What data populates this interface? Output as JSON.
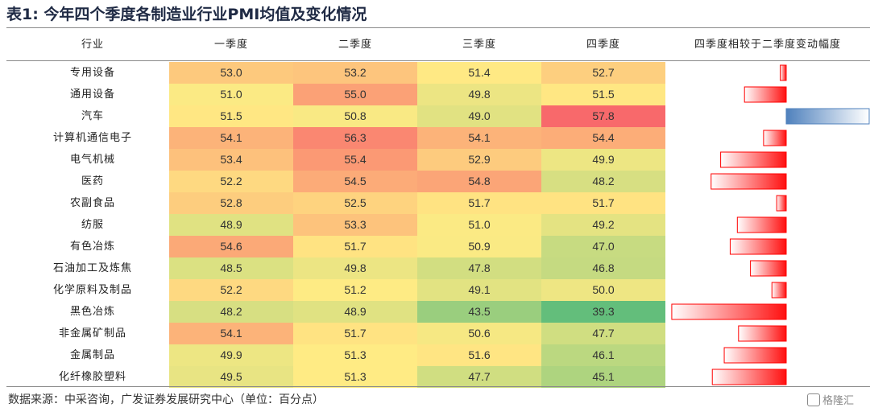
{
  "title": "表1:  今年四个季度各制造业行业PMI均值及变化情况",
  "headers": {
    "industry": "行业",
    "q1": "一季度",
    "q2": "二季度",
    "q3": "三季度",
    "q4": "四季度",
    "change": "四季度相较于二季度变动幅度"
  },
  "rows": [
    {
      "industry": "专用设备",
      "q1": "53.0",
      "q2": "53.2",
      "q3": "51.4",
      "q4": "52.7"
    },
    {
      "industry": "通用设备",
      "q1": "51.0",
      "q2": "55.0",
      "q3": "49.8",
      "q4": "51.5"
    },
    {
      "industry": "汽车",
      "q1": "51.5",
      "q2": "50.8",
      "q3": "49.0",
      "q4": "57.8"
    },
    {
      "industry": "计算机通信电子",
      "q1": "54.1",
      "q2": "56.3",
      "q3": "54.1",
      "q4": "54.4"
    },
    {
      "industry": "电气机械",
      "q1": "53.4",
      "q2": "55.4",
      "q3": "52.9",
      "q4": "49.9"
    },
    {
      "industry": "医药",
      "q1": "52.2",
      "q2": "54.5",
      "q3": "54.8",
      "q4": "48.2"
    },
    {
      "industry": "农副食品",
      "q1": "52.8",
      "q2": "52.5",
      "q3": "51.7",
      "q4": "51.7"
    },
    {
      "industry": "纺服",
      "q1": "48.9",
      "q2": "53.3",
      "q3": "51.0",
      "q4": "49.2"
    },
    {
      "industry": "有色冶炼",
      "q1": "54.6",
      "q2": "51.7",
      "q3": "50.9",
      "q4": "47.0"
    },
    {
      "industry": "石油加工及炼焦",
      "q1": "48.5",
      "q2": "49.8",
      "q3": "47.8",
      "q4": "46.8"
    },
    {
      "industry": "化学原料及制品",
      "q1": "52.2",
      "q2": "51.2",
      "q3": "49.1",
      "q4": "50.0"
    },
    {
      "industry": "黑色冶炼",
      "q1": "48.2",
      "q2": "48.9",
      "q3": "43.5",
      "q4": "39.3"
    },
    {
      "industry": "非金属矿制品",
      "q1": "54.1",
      "q2": "51.7",
      "q3": "50.6",
      "q4": "47.7"
    },
    {
      "industry": "金属制品",
      "q1": "49.9",
      "q2": "51.3",
      "q3": "51.6",
      "q4": "46.1"
    },
    {
      "industry": "化纤橡胶塑料",
      "q1": "49.5",
      "q2": "51.3",
      "q3": "47.7",
      "q4": "45.1"
    }
  ],
  "heat_colors": {
    "high": "#f8696b",
    "mid": "#ffeb84",
    "low": "#63be7b"
  },
  "bar_colors": {
    "negative": "#ff0000",
    "positive": "#4f81bd"
  },
  "source": "数据来源：中采咨询，广发证券发展研究中心（单位：百分点）",
  "watermark": "格隆汇"
}
